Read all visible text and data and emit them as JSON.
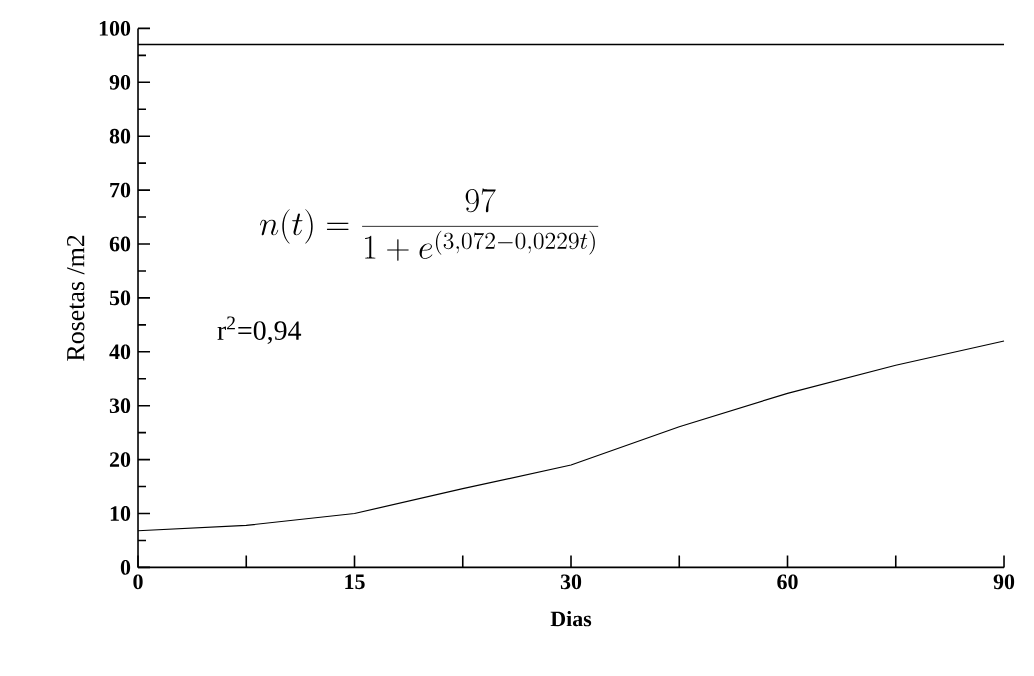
{
  "chart_data": {
    "type": "line",
    "xlabel": "Dias",
    "ylabel": "Rosetas /m2",
    "categories": [
      "0",
      null,
      "15",
      null,
      "30",
      null,
      "60",
      null,
      "90"
    ],
    "values": [
      6.8,
      7.8,
      10.0,
      14.6,
      19.0,
      26.1,
      32.3,
      37.5,
      42.0
    ],
    "color": "#000000",
    "ylim": [
      0,
      100
    ],
    "yticks": [
      0,
      {
        "value": 5,
        "label": null
      },
      10,
      {
        "value": 15,
        "label": null
      },
      20,
      {
        "value": 25,
        "label": null
      },
      30,
      {
        "value": 35,
        "label": null
      },
      40,
      {
        "value": 45,
        "label": null
      },
      50,
      {
        "value": 55,
        "label": null
      },
      60,
      {
        "value": 65,
        "label": null
      },
      70,
      {
        "value": 75,
        "label": null
      },
      80,
      {
        "value": 85,
        "label": null
      },
      90,
      {
        "value": 95,
        "label": null
      },
      100
    ],
    "ref_lines": [
      {
        "axis": "y",
        "value": 97,
        "color": "#000000"
      }
    ],
    "annotations": [
      "n(t)=\\frac{97}{1+e^{(3,072-0,0229t)}}",
      "r$^{2}$=0,94"
    ],
    "marker": "none",
    "line_style": "solid",
    "grid": false
  }
}
